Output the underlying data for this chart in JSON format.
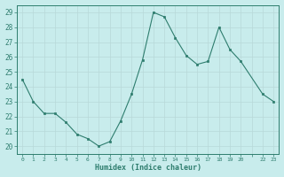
{
  "x": [
    0,
    1,
    2,
    3,
    4,
    5,
    6,
    7,
    8,
    9,
    10,
    11,
    12,
    13,
    14,
    15,
    16,
    17,
    18,
    19,
    20,
    22,
    23
  ],
  "y": [
    24.5,
    23.0,
    22.2,
    22.2,
    21.6,
    20.8,
    20.5,
    20.0,
    20.3,
    21.7,
    23.5,
    25.8,
    29.0,
    28.7,
    27.3,
    26.1,
    25.5,
    25.7,
    28.0,
    26.5,
    25.7,
    23.5,
    23.0
  ],
  "line_color": "#2e7d6e",
  "marker_color": "#2e7d6e",
  "bg_color": "#c8ecec",
  "grid_color": "#b8d8d8",
  "xlabel": "Humidex (Indice chaleur)",
  "yticks": [
    20,
    21,
    22,
    23,
    24,
    25,
    26,
    27,
    28,
    29
  ],
  "xtick_labels": [
    "0",
    "1",
    "2",
    "3",
    "4",
    "5",
    "6",
    "7",
    "8",
    "9",
    "10",
    "11",
    "12",
    "13",
    "14",
    "15",
    "16",
    "17",
    "18",
    "19",
    "20",
    "",
    "22",
    "23"
  ],
  "xtick_positions": [
    0,
    1,
    2,
    3,
    4,
    5,
    6,
    7,
    8,
    9,
    10,
    11,
    12,
    13,
    14,
    15,
    16,
    17,
    18,
    19,
    20,
    21,
    22,
    23
  ],
  "ylim": [
    19.5,
    29.5
  ],
  "xlim": [
    -0.5,
    23.5
  ],
  "axis_color": "#2e7d6e"
}
